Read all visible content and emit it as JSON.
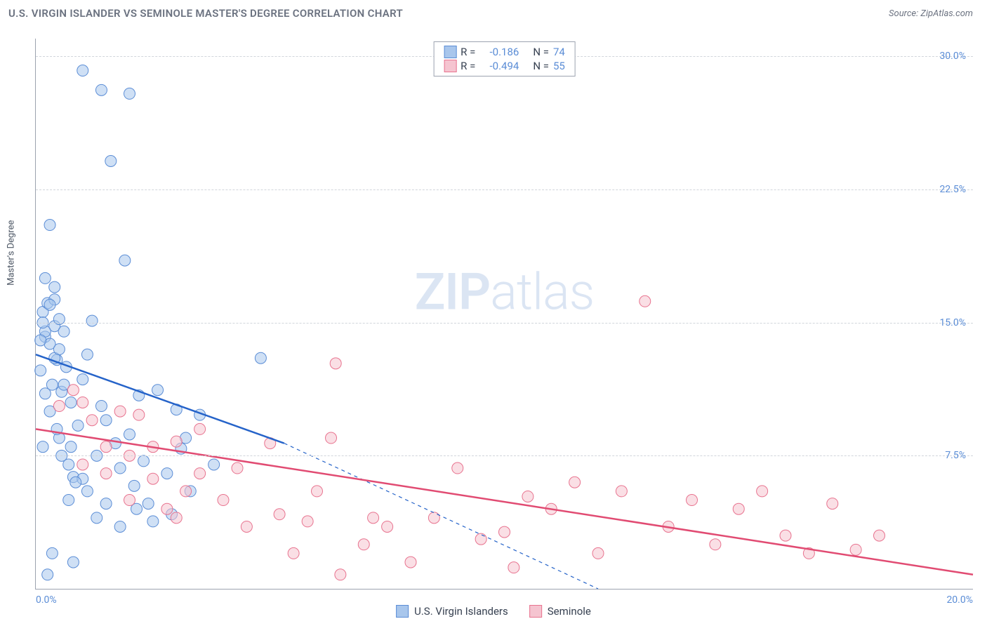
{
  "header": {
    "title": "U.S. VIRGIN ISLANDER VS SEMINOLE MASTER'S DEGREE CORRELATION CHART",
    "source": "Source: ZipAtlas.com"
  },
  "watermark": {
    "zip": "ZIP",
    "atlas": "atlas"
  },
  "chart": {
    "type": "scatter",
    "y_axis_label": "Master's Degree",
    "xlim": [
      0,
      20
    ],
    "ylim": [
      0,
      31
    ],
    "x_ticks": [
      {
        "val": 0,
        "label": "0.0%"
      },
      {
        "val": 20,
        "label": "20.0%"
      }
    ],
    "y_ticks": [
      {
        "val": 7.5,
        "label": "7.5%"
      },
      {
        "val": 15,
        "label": "15.0%"
      },
      {
        "val": 22.5,
        "label": "22.5%"
      },
      {
        "val": 30,
        "label": "30.0%"
      }
    ],
    "series": [
      {
        "name": "U.S. Virgin Islanders",
        "fill_color": "#a8c6ec",
        "stroke_color": "#5b8dd6",
        "marker_radius": 8,
        "marker_opacity": 0.55,
        "R": "-0.186",
        "N": "74",
        "trend": {
          "solid": [
            [
              0,
              13.2
            ],
            [
              5.3,
              8.2
            ]
          ],
          "dashed": [
            [
              5.3,
              8.2
            ],
            [
              12,
              0
            ]
          ],
          "color": "#2563c9",
          "width": 2.5
        },
        "points": [
          [
            0.1,
            12.3
          ],
          [
            0.15,
            15.6
          ],
          [
            0.2,
            14.2
          ],
          [
            0.25,
            16.1
          ],
          [
            0.3,
            13.8
          ],
          [
            0.3,
            20.5
          ],
          [
            0.35,
            11.5
          ],
          [
            0.4,
            14.8
          ],
          [
            0.4,
            16.3
          ],
          [
            0.45,
            12.9
          ],
          [
            0.5,
            15.2
          ],
          [
            0.55,
            11.1
          ],
          [
            0.6,
            14.5
          ],
          [
            0.7,
            7.0
          ],
          [
            0.75,
            10.5
          ],
          [
            0.8,
            6.3
          ],
          [
            0.9,
            9.2
          ],
          [
            1.0,
            29.2
          ],
          [
            1.0,
            11.8
          ],
          [
            1.1,
            13.2
          ],
          [
            1.2,
            15.1
          ],
          [
            1.3,
            7.5
          ],
          [
            1.4,
            28.1
          ],
          [
            1.4,
            10.3
          ],
          [
            1.5,
            9.5
          ],
          [
            1.6,
            24.1
          ],
          [
            1.7,
            8.2
          ],
          [
            1.8,
            6.8
          ],
          [
            1.9,
            18.5
          ],
          [
            2.0,
            27.9
          ],
          [
            2.0,
            8.7
          ],
          [
            2.1,
            5.8
          ],
          [
            2.15,
            4.5
          ],
          [
            2.2,
            10.9
          ],
          [
            2.3,
            7.2
          ],
          [
            2.5,
            3.8
          ],
          [
            2.6,
            11.2
          ],
          [
            2.8,
            6.5
          ],
          [
            2.9,
            4.2
          ],
          [
            3.0,
            10.1
          ],
          [
            3.1,
            7.9
          ],
          [
            3.3,
            5.5
          ],
          [
            3.5,
            9.8
          ],
          [
            0.3,
            10.0
          ],
          [
            0.5,
            8.5
          ],
          [
            0.7,
            5.0
          ],
          [
            1.0,
            6.2
          ],
          [
            1.5,
            4.8
          ],
          [
            0.2,
            17.5
          ],
          [
            0.4,
            13.0
          ],
          [
            0.6,
            11.5
          ],
          [
            0.25,
            0.8
          ],
          [
            0.35,
            2.0
          ],
          [
            0.8,
            1.5
          ],
          [
            0.15,
            8.0
          ],
          [
            0.45,
            9.0
          ],
          [
            0.55,
            7.5
          ],
          [
            0.2,
            14.5
          ],
          [
            0.3,
            16.0
          ],
          [
            0.1,
            14.0
          ],
          [
            4.8,
            13.0
          ],
          [
            0.65,
            12.5
          ],
          [
            0.75,
            8.0
          ],
          [
            0.85,
            6.0
          ],
          [
            1.1,
            5.5
          ],
          [
            1.3,
            4.0
          ],
          [
            1.8,
            3.5
          ],
          [
            2.4,
            4.8
          ],
          [
            3.2,
            8.5
          ],
          [
            3.8,
            7.0
          ],
          [
            0.5,
            13.5
          ],
          [
            0.2,
            11.0
          ],
          [
            0.15,
            15.0
          ],
          [
            0.4,
            17.0
          ]
        ]
      },
      {
        "name": "Seminole",
        "fill_color": "#f5c4d0",
        "stroke_color": "#e8738f",
        "marker_radius": 8,
        "marker_opacity": 0.55,
        "R": "-0.494",
        "N": "55",
        "trend": {
          "solid": [
            [
              0,
              9.0
            ],
            [
              20,
              0.8
            ]
          ],
          "dashed": null,
          "color": "#e14b72",
          "width": 2.5
        },
        "points": [
          [
            0.5,
            10.3
          ],
          [
            0.8,
            11.2
          ],
          [
            1.0,
            10.5
          ],
          [
            1.2,
            9.5
          ],
          [
            1.5,
            8.0
          ],
          [
            1.8,
            10.0
          ],
          [
            2.0,
            7.5
          ],
          [
            2.2,
            9.8
          ],
          [
            2.5,
            6.2
          ],
          [
            2.8,
            4.5
          ],
          [
            3.0,
            8.3
          ],
          [
            3.2,
            5.5
          ],
          [
            3.5,
            9.0
          ],
          [
            4.0,
            5.0
          ],
          [
            4.3,
            6.8
          ],
          [
            4.5,
            3.5
          ],
          [
            5.0,
            8.2
          ],
          [
            5.2,
            4.2
          ],
          [
            5.5,
            2.0
          ],
          [
            5.8,
            3.8
          ],
          [
            6.0,
            5.5
          ],
          [
            6.3,
            8.5
          ],
          [
            6.4,
            12.7
          ],
          [
            6.5,
            0.8
          ],
          [
            7.0,
            2.5
          ],
          [
            7.2,
            4.0
          ],
          [
            7.5,
            3.5
          ],
          [
            8.0,
            1.5
          ],
          [
            8.5,
            4.0
          ],
          [
            9.0,
            6.8
          ],
          [
            9.5,
            2.8
          ],
          [
            10.0,
            3.2
          ],
          [
            10.2,
            1.2
          ],
          [
            10.5,
            5.2
          ],
          [
            11.0,
            4.5
          ],
          [
            11.5,
            6.0
          ],
          [
            12.0,
            2.0
          ],
          [
            12.5,
            5.5
          ],
          [
            13.0,
            16.2
          ],
          [
            13.5,
            3.5
          ],
          [
            14.0,
            5.0
          ],
          [
            14.5,
            2.5
          ],
          [
            15.0,
            4.5
          ],
          [
            15.5,
            5.5
          ],
          [
            16.0,
            3.0
          ],
          [
            16.5,
            2.0
          ],
          [
            17.0,
            4.8
          ],
          [
            17.5,
            2.2
          ],
          [
            18.0,
            3.0
          ],
          [
            1.0,
            7.0
          ],
          [
            1.5,
            6.5
          ],
          [
            2.0,
            5.0
          ],
          [
            2.5,
            8.0
          ],
          [
            3.0,
            4.0
          ],
          [
            3.5,
            6.5
          ]
        ]
      }
    ],
    "legend_top": {
      "R_label": "R =",
      "N_label": "N ="
    },
    "background_color": "#ffffff",
    "grid_color": "#d1d5db"
  }
}
